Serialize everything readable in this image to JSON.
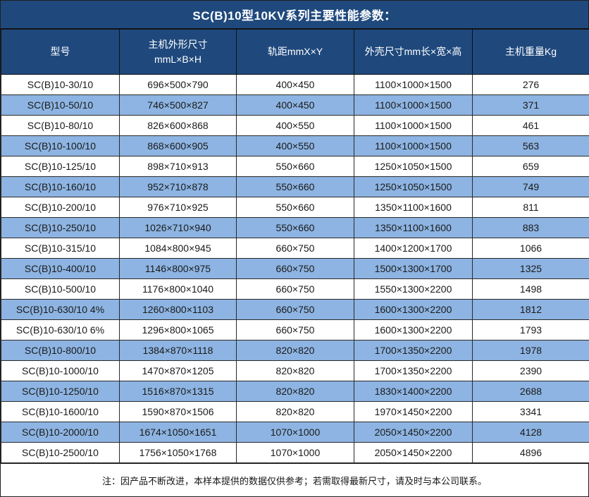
{
  "title": "SC(B)10型10KV系列主要性能参数：",
  "colors": {
    "header_bg": "#1F497D",
    "header_text": "#FFFFFF",
    "alt_row_bg": "#8DB4E2",
    "row_bg": "#FFFFFF",
    "body_text": "#1A1A1A",
    "border": "#1F1F1F"
  },
  "table": {
    "columns": [
      {
        "key": "model",
        "label": "型号",
        "sub": ""
      },
      {
        "key": "host-dimensions",
        "label": "主机外形尺寸",
        "sub": "mmL×B×H"
      },
      {
        "key": "rail-gauge",
        "label": "轨距mmX×Y",
        "sub": ""
      },
      {
        "key": "shell-dimensions",
        "label": "外壳尺寸mm长×宽×高",
        "sub": ""
      },
      {
        "key": "weight",
        "label": "主机重量Kg",
        "sub": ""
      }
    ],
    "rows": [
      [
        "SC(B)10-30/10",
        "696×500×790",
        "400×450",
        "1100×1000×1500",
        "276"
      ],
      [
        "SC(B)10-50/10",
        "746×500×827",
        "400×450",
        "1100×1000×1500",
        "371"
      ],
      [
        "SC(B)10-80/10",
        "826×600×868",
        "400×550",
        "1100×1000×1500",
        "461"
      ],
      [
        "SC(B)10-100/10",
        "868×600×905",
        "400×550",
        "1100×1000×1500",
        "563"
      ],
      [
        "SC(B)10-125/10",
        "898×710×913",
        "550×660",
        "1250×1050×1500",
        "659"
      ],
      [
        "SC(B)10-160/10",
        "952×710×878",
        "550×660",
        "1250×1050×1500",
        "749"
      ],
      [
        "SC(B)10-200/10",
        "976×710×925",
        "550×660",
        "1350×1100×1600",
        "811"
      ],
      [
        "SC(B)10-250/10",
        "1026×710×940",
        "550×660",
        "1350×1100×1600",
        "883"
      ],
      [
        "SC(B)10-315/10",
        "1084×800×945",
        "660×750",
        "1400×1200×1700",
        "1066"
      ],
      [
        "SC(B)10-400/10",
        "1146×800×975",
        "660×750",
        "1500×1300×1700",
        "1325"
      ],
      [
        "SC(B)10-500/10",
        "1176×800×1040",
        "660×750",
        "1550×1300×2200",
        "1498"
      ],
      [
        "SC(B)10-630/10 4%",
        "1260×800×1103",
        "660×750",
        "1600×1300×2200",
        "1812"
      ],
      [
        "SC(B)10-630/10 6%",
        "1296×800×1065",
        "660×750",
        "1600×1300×2200",
        "1793"
      ],
      [
        "SC(B)10-800/10",
        "1384×870×1118",
        "820×820",
        "1700×1350×2200",
        "1978"
      ],
      [
        "SC(B)10-1000/10",
        "1470×870×1205",
        "820×820",
        "1700×1350×2200",
        "2390"
      ],
      [
        "SC(B)10-1250/10",
        "1516×870×1315",
        "820×820",
        "1830×1400×2200",
        "2688"
      ],
      [
        "SC(B)10-1600/10",
        "1590×870×1506",
        "820×820",
        "1970×1450×2200",
        "3341"
      ],
      [
        "SC(B)10-2000/10",
        "1674×1050×1651",
        "1070×1000",
        "2050×1450×2200",
        "4128"
      ],
      [
        "SC(B)10-2500/10",
        "1756×1050×1768",
        "1070×1000",
        "2050×1450×2200",
        "4896"
      ]
    ]
  },
  "footnote": "注：因产品不断改进，本样本提供的数据仅供参考；若需取得最新尺寸，请及时与本公司联系。"
}
